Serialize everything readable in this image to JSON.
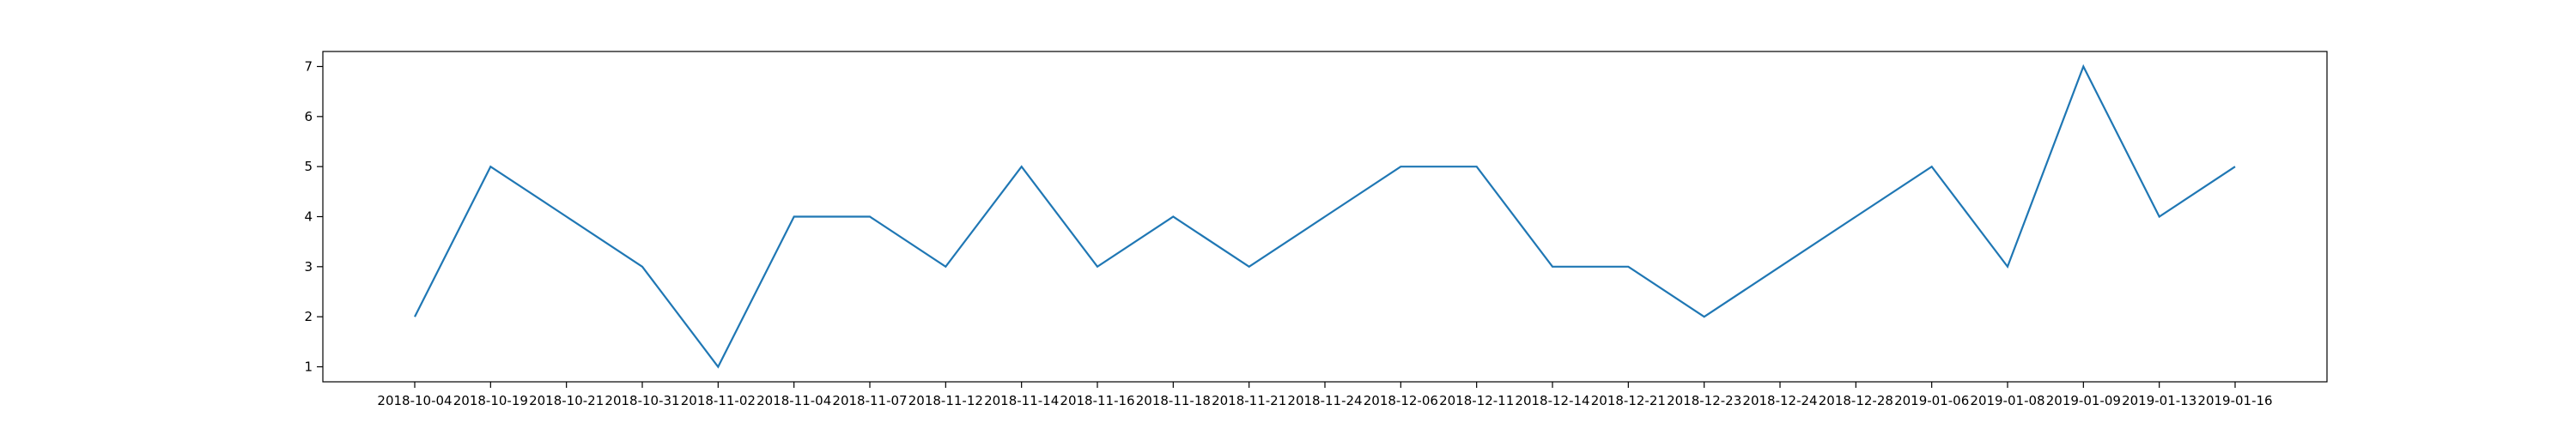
{
  "chart_data": {
    "type": "line",
    "title": "",
    "xlabel": "",
    "ylabel": "",
    "categories": [
      "2018-10-04",
      "2018-10-19",
      "2018-10-21",
      "2018-10-31",
      "2018-11-02",
      "2018-11-04",
      "2018-11-07",
      "2018-11-12",
      "2018-11-14",
      "2018-11-16",
      "2018-11-18",
      "2018-11-21",
      "2018-11-24",
      "2018-12-06",
      "2018-12-11",
      "2018-12-14",
      "2018-12-21",
      "2018-12-23",
      "2018-12-24",
      "2018-12-28",
      "2019-01-06",
      "2019-01-08",
      "2019-01-09",
      "2019-01-13",
      "2019-01-16"
    ],
    "series": [
      {
        "values": [
          2,
          5,
          4,
          3,
          1,
          4,
          4,
          3,
          5,
          3,
          4,
          3,
          4,
          5,
          5,
          3,
          3,
          2,
          3,
          4,
          5,
          3,
          7,
          4,
          5
        ],
        "color": "#1f77b4"
      }
    ],
    "ylim": [
      0.7,
      7.3
    ],
    "yticks": [
      1,
      2,
      3,
      4,
      5,
      6,
      7
    ],
    "grid": false,
    "legend": "none"
  }
}
